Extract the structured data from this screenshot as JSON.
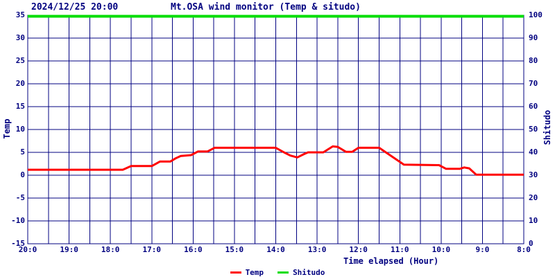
{
  "header": {
    "datetime": "2024/12/25 20:00",
    "title": "Mt.OSA wind monitor (Temp & situdo)"
  },
  "chart_data": {
    "type": "line",
    "title": "Mt.OSA wind monitor (Temp & situdo)",
    "timestamp_label": "2024/12/25 20:00",
    "xlabel": "Time elapsed (Hour)",
    "grid": true,
    "grid_color": "#000080",
    "text_color": "#000080",
    "background": "#ffffff",
    "x_axis": {
      "tick_labels": [
        "20:0",
        "19:0",
        "18:0",
        "17:0",
        "16:0",
        "15:0",
        "14:0",
        "13:0",
        "12:0",
        "11:0",
        "10:0",
        "9:0",
        "8:0"
      ],
      "range_hours": [
        0,
        12
      ],
      "minor_gridline_step_hours": 0.5
    },
    "left_axis": {
      "label": "Temp",
      "range": [
        -15,
        35
      ],
      "tick_step": 5,
      "ticks": [
        35,
        30,
        25,
        20,
        15,
        10,
        5,
        0,
        -5,
        -10,
        -15
      ]
    },
    "right_axis": {
      "label": "Shitudo",
      "range": [
        0,
        100
      ],
      "tick_step": 10,
      "ticks": [
        100,
        90,
        80,
        70,
        60,
        50,
        40,
        30,
        20,
        10,
        0
      ]
    },
    "series": [
      {
        "name": "Temp",
        "color": "#ff0000",
        "axis": "left",
        "points": [
          [
            0,
            1.2
          ],
          [
            2.3,
            1.2
          ],
          [
            2.5,
            2.0
          ],
          [
            3.0,
            2.0
          ],
          [
            3.2,
            3.0
          ],
          [
            3.45,
            3.0
          ],
          [
            3.58,
            3.7
          ],
          [
            3.7,
            4.2
          ],
          [
            3.95,
            4.4
          ],
          [
            4.12,
            5.2
          ],
          [
            4.35,
            5.2
          ],
          [
            4.52,
            6.0
          ],
          [
            6.0,
            6.0
          ],
          [
            6.2,
            5.0
          ],
          [
            6.35,
            4.3
          ],
          [
            6.52,
            3.9
          ],
          [
            6.68,
            4.6
          ],
          [
            6.78,
            5.0
          ],
          [
            7.15,
            5.0
          ],
          [
            7.38,
            6.3
          ],
          [
            7.5,
            6.2
          ],
          [
            7.7,
            5.1
          ],
          [
            7.85,
            5.1
          ],
          [
            8.0,
            6.0
          ],
          [
            8.5,
            6.0
          ],
          [
            9.1,
            2.3
          ],
          [
            9.95,
            2.2
          ],
          [
            10.12,
            1.4
          ],
          [
            10.45,
            1.4
          ],
          [
            10.56,
            1.7
          ],
          [
            10.68,
            1.5
          ],
          [
            10.85,
            0.1
          ],
          [
            12,
            0.1
          ]
        ]
      },
      {
        "name": "Shitudo",
        "color": "#00dd00",
        "axis": "right",
        "points": [
          [
            0,
            100
          ],
          [
            12,
            100
          ]
        ]
      }
    ],
    "legend": [
      {
        "label": "Temp",
        "color": "#ff0000"
      },
      {
        "label": "Shitudo",
        "color": "#00dd00"
      }
    ],
    "legend_position": "bottom-center"
  }
}
